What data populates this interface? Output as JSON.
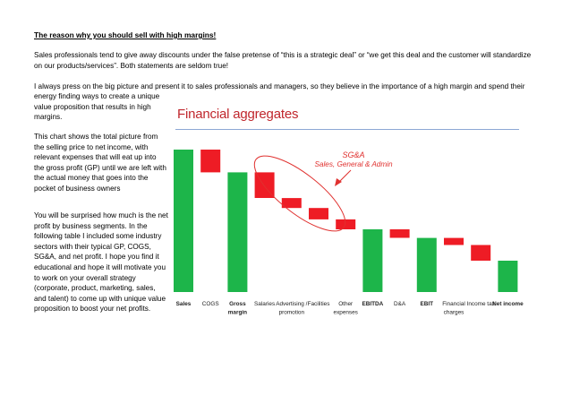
{
  "heading": "The reason why you should sell with high margins!",
  "paragraph1": "Sales professionals tend to give away discounts under the false pretense of “this is a strategic deal” or “we get this deal and the customer will standardize on our products/services”. Both statements are seldom true!",
  "paragraph2_line1": "I always press on the big picture and present it to sales professionals and managers, so they believe in the importance of a high margin and spend their",
  "paragraph2_rest": "energy finding ways to create a unique value proposition that results in high margins.",
  "paragraph3": "This chart shows the total picture from the selling price to net income, with relevant expenses that will eat up into the gross profit (GP) until we are left with the actual money that goes into the pocket of business owners",
  "paragraph4": "You will be surprised how much is the net profit by business segments. In the following table I included some industry sectors with their typical GP, COGS, SG&A, and net profit. I hope you find it educational and hope it will motivate you to work on your overall strategy (corporate, product, marketing, sales, and talent) to come up with unique value proposition to boost your net profits.",
  "chart_data": {
    "type": "bar",
    "title": "Financial aggregates",
    "annotation": {
      "line1": "SG&A",
      "line2": "Sales, General & Admin"
    },
    "categories": [
      {
        "label": "Sales",
        "bold": true
      },
      {
        "label": "COGS",
        "bold": false
      },
      {
        "label": "Gross margin",
        "bold": true
      },
      {
        "label": "Salaries",
        "bold": false
      },
      {
        "label": "Advertising / promotion",
        "bold": false
      },
      {
        "label": "Facilities",
        "bold": false
      },
      {
        "label": "Other expenses",
        "bold": false
      },
      {
        "label": "EBITDA",
        "bold": true
      },
      {
        "label": "D&A",
        "bold": false
      },
      {
        "label": "EBIT",
        "bold": true
      },
      {
        "label": "Financial charges",
        "bold": false
      },
      {
        "label": "Income tax",
        "bold": false
      },
      {
        "label": "Net income",
        "bold": true
      }
    ],
    "bars": [
      {
        "kind": "total",
        "start": 0,
        "end": 100
      },
      {
        "kind": "decrease",
        "start": 100,
        "end": 84
      },
      {
        "kind": "total",
        "start": 0,
        "end": 84
      },
      {
        "kind": "decrease",
        "start": 84,
        "end": 66
      },
      {
        "kind": "decrease",
        "start": 66,
        "end": 59
      },
      {
        "kind": "decrease",
        "start": 59,
        "end": 51
      },
      {
        "kind": "decrease",
        "start": 51,
        "end": 44
      },
      {
        "kind": "total",
        "start": 0,
        "end": 44
      },
      {
        "kind": "decrease",
        "start": 44,
        "end": 38
      },
      {
        "kind": "total",
        "start": 0,
        "end": 38
      },
      {
        "kind": "decrease",
        "start": 38,
        "end": 33
      },
      {
        "kind": "decrease",
        "start": 33,
        "end": 22
      },
      {
        "kind": "total",
        "start": 0,
        "end": 22
      }
    ],
    "ylim": [
      0,
      100
    ],
    "colors": {
      "total": "#1db54a",
      "decrease": "#ee1c25",
      "title": "#c0272d",
      "annotation": "#e0312f"
    }
  }
}
